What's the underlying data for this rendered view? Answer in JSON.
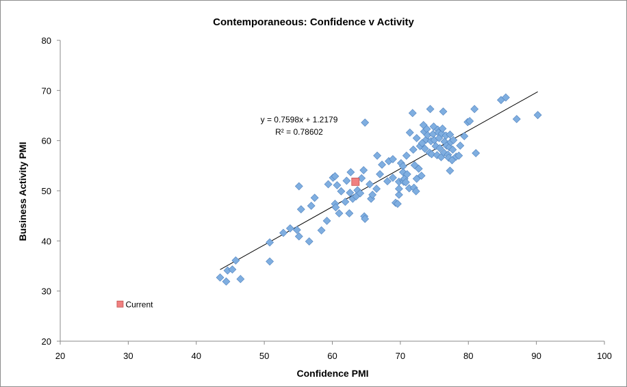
{
  "chart_data": {
    "type": "scatter",
    "title": "Contemporaneous: Confidence v Activity",
    "xlabel": "Confidence PMI",
    "ylabel": "Business Activity PMI",
    "xlim": [
      20,
      100
    ],
    "ylim": [
      20,
      80
    ],
    "xticks": [
      "20",
      "30",
      "40",
      "50",
      "60",
      "70",
      "80",
      "90",
      "100"
    ],
    "yticks": [
      "20",
      "30",
      "40",
      "50",
      "60",
      "70",
      "80"
    ],
    "grid": false,
    "legend": "none",
    "colors": {
      "points": "#7faee0",
      "points_edge": "#4f81bd",
      "current": "#f08080",
      "current_edge": "#c0504d",
      "trendline": "#000000"
    },
    "trendline": {
      "slope": 0.7598,
      "intercept": 1.2179,
      "x_range": [
        43.5,
        90.2
      ],
      "equation_label": "y = 0.7598x + 1.2179",
      "r2_label": "R² = 0.78602"
    },
    "series": [
      {
        "name": "",
        "points": [
          [
            43.5,
            32.7
          ],
          [
            44.4,
            31.9
          ],
          [
            44.6,
            34.1
          ],
          [
            45.3,
            34.3
          ],
          [
            45.8,
            36.1
          ],
          [
            46.5,
            32.4
          ],
          [
            50.8,
            39.7
          ],
          [
            50.8,
            35.9
          ],
          [
            52.8,
            41.6
          ],
          [
            53.8,
            42.5
          ],
          [
            54.8,
            42.2
          ],
          [
            55.1,
            40.9
          ],
          [
            55.1,
            50.9
          ],
          [
            55.4,
            46.3
          ],
          [
            56.6,
            39.9
          ],
          [
            56.9,
            47.0
          ],
          [
            57.4,
            48.6
          ],
          [
            58.4,
            42.1
          ],
          [
            59.2,
            44.0
          ],
          [
            59.4,
            51.3
          ],
          [
            60.1,
            52.6
          ],
          [
            60.4,
            52.9
          ],
          [
            60.4,
            47.4
          ],
          [
            60.5,
            46.7
          ],
          [
            60.7,
            51.1
          ],
          [
            61.0,
            45.5
          ],
          [
            61.3,
            49.9
          ],
          [
            61.9,
            47.8
          ],
          [
            62.1,
            52.0
          ],
          [
            62.5,
            45.5
          ],
          [
            62.6,
            49.6
          ],
          [
            62.7,
            53.7
          ],
          [
            63.0,
            48.4
          ],
          [
            63.5,
            48.9
          ],
          [
            63.7,
            50.1
          ],
          [
            64.1,
            49.5
          ],
          [
            64.3,
            52.5
          ],
          [
            64.6,
            54.1
          ],
          [
            64.7,
            44.9
          ],
          [
            64.8,
            44.4
          ],
          [
            64.8,
            63.6
          ],
          [
            65.5,
            51.3
          ],
          [
            65.7,
            48.4
          ],
          [
            65.9,
            49.2
          ],
          [
            66.5,
            50.4
          ],
          [
            66.6,
            57.0
          ],
          [
            67.0,
            53.3
          ],
          [
            67.3,
            55.2
          ],
          [
            68.1,
            51.9
          ],
          [
            68.3,
            55.9
          ],
          [
            68.9,
            56.3
          ],
          [
            68.9,
            52.6
          ],
          [
            69.3,
            47.6
          ],
          [
            69.6,
            47.4
          ],
          [
            69.8,
            49.2
          ],
          [
            69.8,
            50.4
          ],
          [
            69.8,
            51.8
          ],
          [
            70.1,
            55.5
          ],
          [
            70.4,
            52.1
          ],
          [
            70.4,
            54.9
          ],
          [
            70.4,
            53.7
          ],
          [
            70.5,
            51.8
          ],
          [
            70.6,
            52.4
          ],
          [
            70.8,
            51.7
          ],
          [
            70.9,
            57.0
          ],
          [
            71.0,
            53.3
          ],
          [
            71.3,
            50.5
          ],
          [
            71.4,
            61.6
          ],
          [
            71.8,
            65.5
          ],
          [
            71.9,
            58.2
          ],
          [
            72.0,
            50.6
          ],
          [
            72.1,
            55.1
          ],
          [
            72.3,
            49.9
          ],
          [
            72.4,
            52.4
          ],
          [
            72.4,
            60.5
          ],
          [
            72.7,
            54.4
          ],
          [
            72.9,
            58.9
          ],
          [
            73.1,
            53.0
          ],
          [
            73.2,
            59.5
          ],
          [
            73.4,
            63.1
          ],
          [
            73.5,
            61.8
          ],
          [
            73.6,
            58.4
          ],
          [
            73.8,
            60.2
          ],
          [
            73.9,
            62.3
          ],
          [
            74.0,
            61.1
          ],
          [
            74.3,
            57.6
          ],
          [
            74.4,
            66.3
          ],
          [
            74.5,
            59.9
          ],
          [
            74.6,
            57.3
          ],
          [
            74.8,
            61.3
          ],
          [
            74.9,
            62.8
          ],
          [
            75.0,
            60.1
          ],
          [
            75.2,
            58.9
          ],
          [
            75.4,
            57.1
          ],
          [
            75.5,
            62.2
          ],
          [
            75.6,
            61.6
          ],
          [
            75.7,
            60.5
          ],
          [
            75.8,
            58.5
          ],
          [
            76.0,
            56.7
          ],
          [
            76.1,
            61.4
          ],
          [
            76.2,
            62.4
          ],
          [
            76.3,
            65.8
          ],
          [
            76.4,
            57.6
          ],
          [
            76.5,
            59.8
          ],
          [
            76.7,
            61.0
          ],
          [
            76.8,
            59.0
          ],
          [
            77.0,
            57.2
          ],
          [
            77.1,
            56.6
          ],
          [
            77.2,
            58.7
          ],
          [
            77.3,
            54.0
          ],
          [
            77.3,
            61.2
          ],
          [
            77.4,
            59.7
          ],
          [
            77.6,
            56.1
          ],
          [
            77.7,
            58.2
          ],
          [
            77.8,
            60.1
          ],
          [
            78.2,
            56.8
          ],
          [
            78.6,
            57.0
          ],
          [
            78.8,
            59.0
          ],
          [
            79.4,
            60.9
          ],
          [
            79.9,
            63.7
          ],
          [
            80.2,
            63.9
          ],
          [
            80.9,
            66.3
          ],
          [
            81.1,
            57.5
          ],
          [
            84.8,
            68.1
          ],
          [
            85.5,
            68.6
          ],
          [
            87.1,
            64.3
          ],
          [
            90.2,
            65.1
          ]
        ]
      }
    ],
    "highlight": {
      "name": "Current",
      "label": "Current",
      "points": [
        [
          63.4,
          51.8
        ],
        [
          28.8,
          27.4
        ]
      ]
    }
  }
}
